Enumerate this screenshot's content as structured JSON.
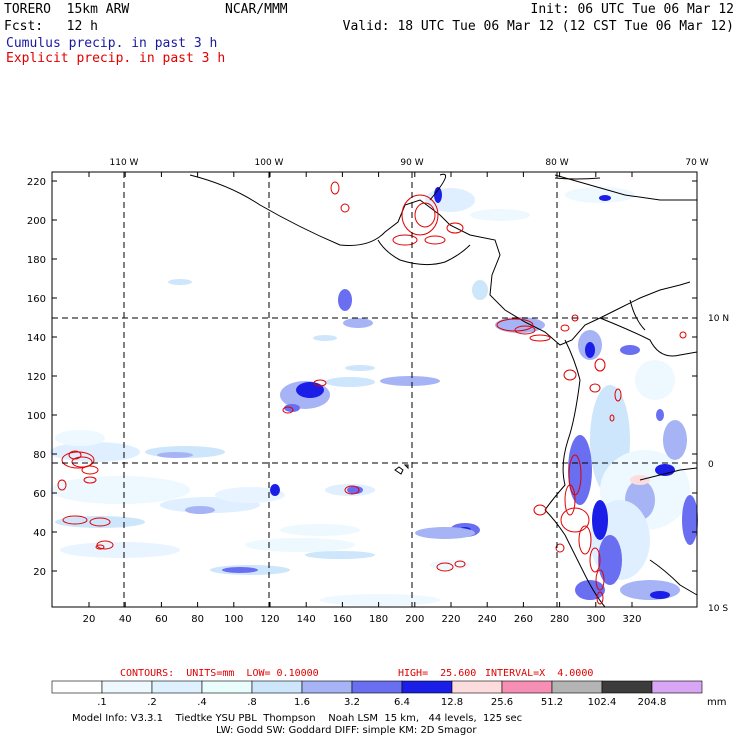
{
  "header": {
    "model": "TORERO  15km ARW",
    "org": "NCAR/MMM",
    "init": "Init: 06 UTC Tue 06 Mar 12",
    "fcst": "Fcst:   12 h",
    "valid": "Valid: 18 UTC Tue 06 Mar 12 (12 CST Tue 06 Mar 12)",
    "field1": "Cumulus precip. in past 3 h",
    "field2": "Explicit precip. in past 3 h"
  },
  "axes": {
    "top_lon_labels": [
      "110 W",
      "100 W",
      "90 W",
      "80 W",
      "70 W"
    ],
    "right_lat_labels": [
      "10 N",
      "0",
      "10 S"
    ],
    "y_ticks": [
      "220",
      "200",
      "180",
      "160",
      "140",
      "120",
      "100",
      "80",
      "60",
      "40",
      "20"
    ],
    "x_ticks": [
      "20",
      "40",
      "60",
      "80",
      "100",
      "120",
      "140",
      "160",
      "180",
      "200",
      "220",
      "240",
      "260",
      "280",
      "300",
      "320"
    ]
  },
  "contour_info": {
    "contours": "CONTOURS:  UNITS=mm  LOW= 0.10000",
    "high": "HIGH=  25.600",
    "interval": "INTERVAL=X  4.0000"
  },
  "colorbar": {
    "labels": [
      ".1",
      ".2",
      ".4",
      ".8",
      "1.6",
      "3.2",
      "6.4",
      "12.8",
      "25.6",
      "51.2",
      "102.4",
      "204.8"
    ],
    "unit": "mm",
    "colors": [
      "#ffffff",
      "#eef8ff",
      "#dff0ff",
      "#eafdfd",
      "#cde6fb",
      "#a6b3f5",
      "#6a6ef0",
      "#1a1ee6",
      "#fcdcdc",
      "#f78fb4",
      "#b4b4b4",
      "#3c3c3c",
      "#d9a6f5"
    ]
  },
  "footer": {
    "line1": "Model Info: V3.3.1    Tiedtke YSU PBL  Thompson    Noah LSM  15 km,   44 levels,  125 sec",
    "line2": "LW: Godd SW: Goddard DIFF: simple KM: 2D Smagor"
  }
}
